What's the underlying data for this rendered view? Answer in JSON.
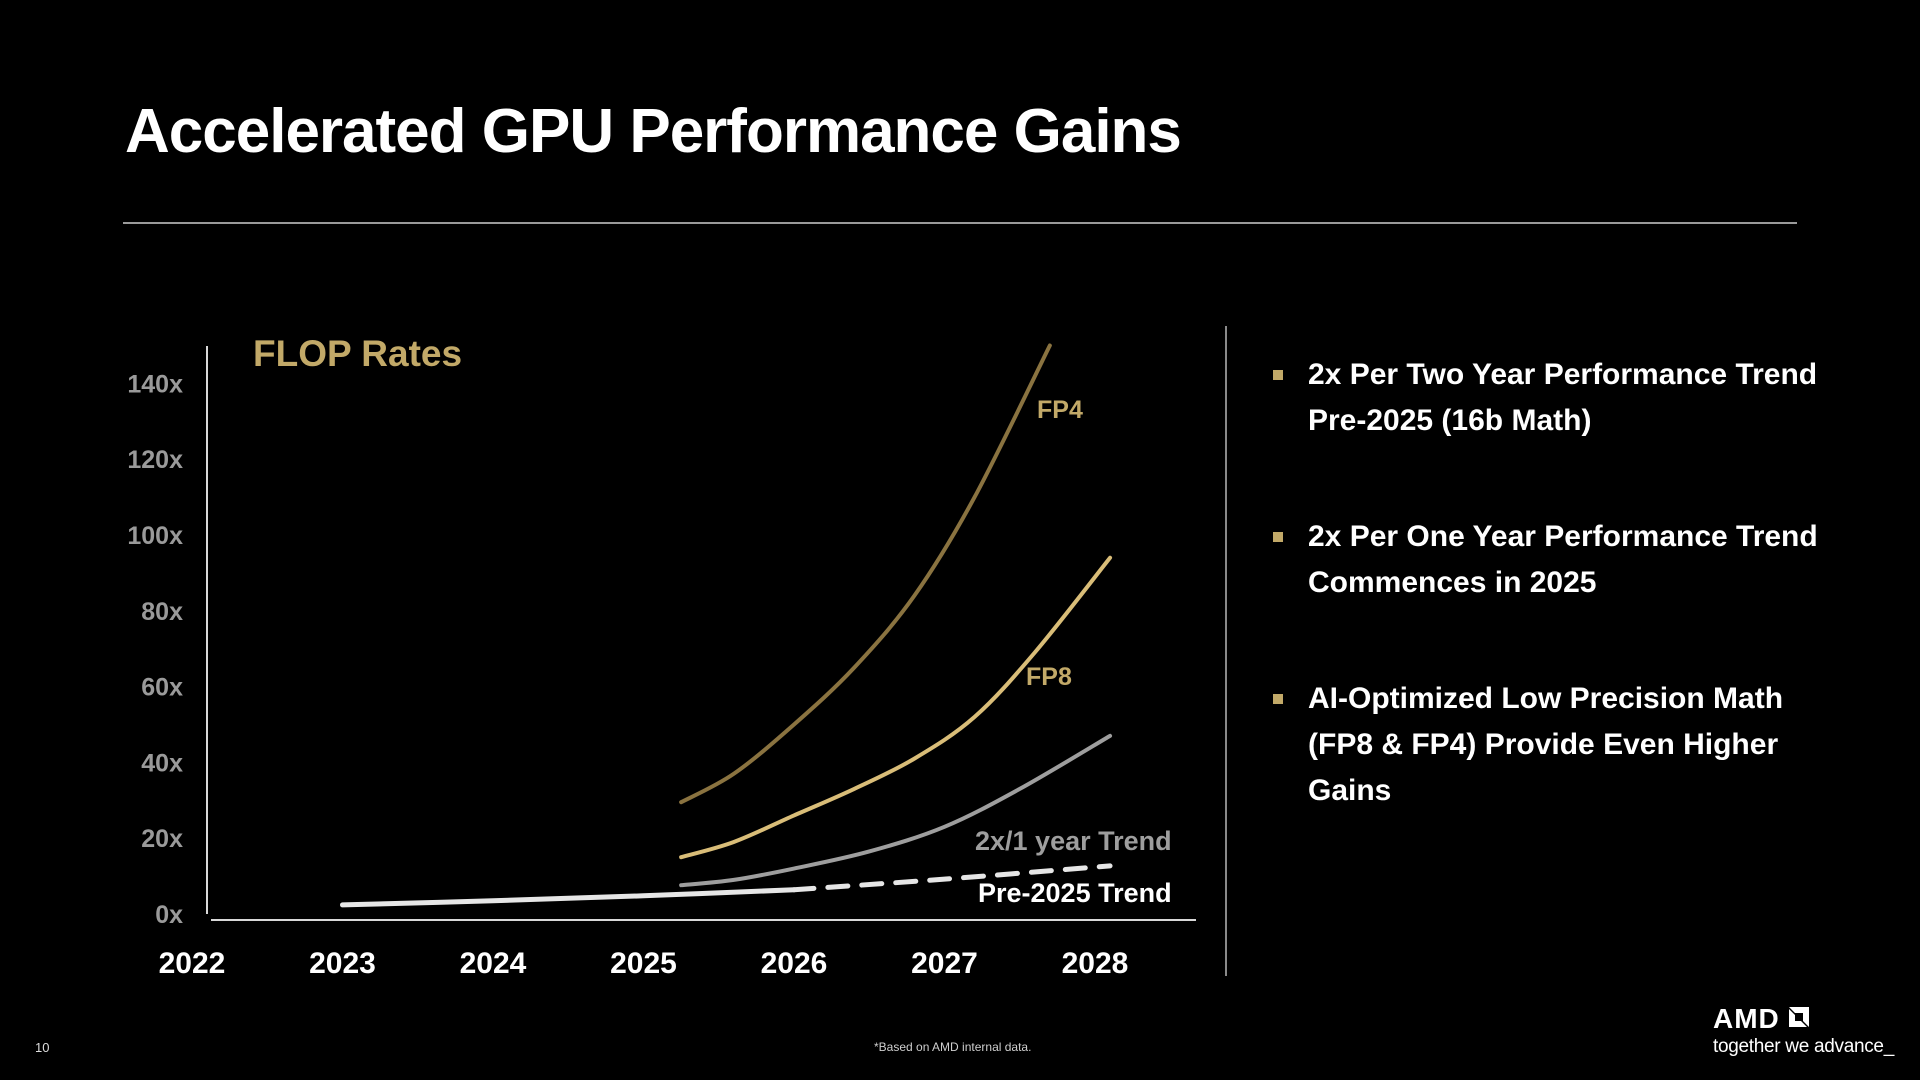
{
  "slide": {
    "title": "Accelerated GPU Performance Gains",
    "page_number": "10",
    "footnote": "*Based on AMD internal data.",
    "logo": {
      "wordmark": "AMD",
      "icon": "amd-arrow-icon",
      "tagline": "together we advance_"
    }
  },
  "bullets": [
    {
      "icon": "square-bullet-icon",
      "text": "2x Per Two Year Performance Trend Pre-2025 (16b Math)"
    },
    {
      "icon": "square-bullet-icon",
      "text": "2x Per One Year Performance Trend Commences in 2025"
    },
    {
      "icon": "square-bullet-icon",
      "text": "AI-Optimized Low Precision Math (FP8 & FP4) Provide Even Higher Gains"
    }
  ],
  "colors": {
    "background": "#000000",
    "title_text": "#ffffff",
    "chart_title": "#c2a968",
    "fp4": "#8a7340",
    "fp8": "#d9bd78",
    "trend_2x1yr": "#9e9e9e",
    "pre2025": "#e6e6e6",
    "tick_label": "#9a9a9a",
    "bullet_marker": "#c2a968"
  },
  "chart_data": {
    "type": "line",
    "title": "FLOP Rates",
    "xlabel": "",
    "ylabel": "",
    "xlim": [
      2022,
      2028.7
    ],
    "ylim": [
      0,
      150
    ],
    "grid": false,
    "x_ticks": [
      "2022",
      "2023",
      "2024",
      "2025",
      "2026",
      "2027",
      "2028"
    ],
    "y_ticks": [
      "0x",
      "20x",
      "40x",
      "60x",
      "80x",
      "100x",
      "120x",
      "140x"
    ],
    "y_tick_values": [
      0,
      20,
      40,
      60,
      80,
      100,
      120,
      140
    ],
    "legend": "inline-labels",
    "series": [
      {
        "name": "FP4",
        "label": "FP4",
        "style": "solid",
        "x": [
          2025.25,
          2025.6,
          2026.0,
          2026.4,
          2026.8,
          2027.2,
          2027.7
        ],
        "y": [
          29.5,
          37,
          50,
          65,
          84,
          110,
          150
        ]
      },
      {
        "name": "FP8",
        "label": "FP8",
        "style": "solid",
        "x": [
          2025.25,
          2025.6,
          2026.0,
          2026.4,
          2026.8,
          2027.2,
          2027.6,
          2028.1
        ],
        "y": [
          15,
          19,
          26,
          33,
          41,
          52,
          69,
          94
        ]
      },
      {
        "name": "2x/1 year Trend",
        "label": "2x/1 year Trend",
        "style": "solid",
        "x": [
          2025.25,
          2025.6,
          2026.0,
          2026.5,
          2027.0,
          2027.5,
          2028.1
        ],
        "y": [
          7.6,
          9,
          12,
          16.5,
          23,
          33,
          47
        ]
      },
      {
        "name": "Pre-2025 Trend",
        "label": "",
        "style": "solid",
        "x": [
          2023.0,
          2024.0,
          2025.0,
          2026.0
        ],
        "y": [
          2.4,
          3.5,
          4.8,
          6.4
        ]
      },
      {
        "name": "Pre-2025 Trend (projected)",
        "label": "Pre-2025 Trend",
        "style": "dashed",
        "x": [
          2026.0,
          2027.0,
          2028.1
        ],
        "y": [
          6.4,
          9.2,
          12.7
        ]
      }
    ]
  }
}
